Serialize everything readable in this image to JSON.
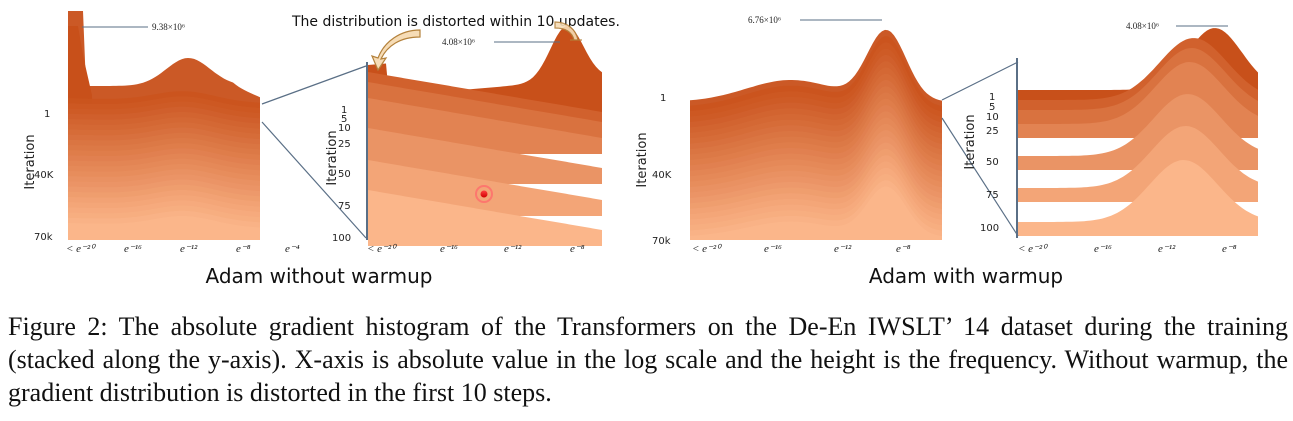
{
  "figure": {
    "annotation": "The distribution is distorted within 10 updates.",
    "panels": [
      {
        "title": "Adam without warmup",
        "main": {
          "ylabel": "Iteration",
          "yticks": [
            "1",
            "40K",
            "70k"
          ],
          "xticks": [
            "< e⁻²⁰",
            "e⁻¹⁶",
            "e⁻¹²",
            "e⁻⁸",
            "e⁻⁴"
          ],
          "peak_label": "9.38×10⁶"
        },
        "zoom": {
          "ylabel": "Iteration",
          "yticks": [
            "1",
            "5",
            "10",
            "25",
            "50",
            "75",
            "100"
          ],
          "xticks": [
            "< e⁻²⁰",
            "e⁻¹⁶",
            "e⁻¹²",
            "e⁻⁸"
          ],
          "peak_label": "4.08×10⁶"
        }
      },
      {
        "title": "Adam with warmup",
        "main": {
          "ylabel": "Iteration",
          "yticks": [
            "1",
            "40K",
            "70k"
          ],
          "xticks": [
            "< e⁻²⁰",
            "e⁻¹⁶",
            "e⁻¹²",
            "e⁻⁸"
          ],
          "peak_label": "6.76×10⁶"
        },
        "zoom": {
          "ylabel": "Iteration",
          "yticks": [
            "1",
            "5",
            "10",
            "25",
            "50",
            "75",
            "100"
          ],
          "xticks": [
            "< e⁻²⁰",
            "e⁻¹⁶",
            "e⁻¹²",
            "e⁻⁸"
          ],
          "peak_label": "4.08×10⁶"
        }
      }
    ],
    "colors": {
      "dark": "#c8501a",
      "light": "#fbb68a",
      "line": "#5a6f86"
    }
  },
  "caption": "Figure 2: The absolute gradient histogram of the Transformers on the De-En IWSLT’ 14 dataset during the training (stacked along the y-axis). X-axis is absolute value in the log scale and the height is the frequency. Without warmup, the gradient distribution is distorted in the first 10 steps."
}
